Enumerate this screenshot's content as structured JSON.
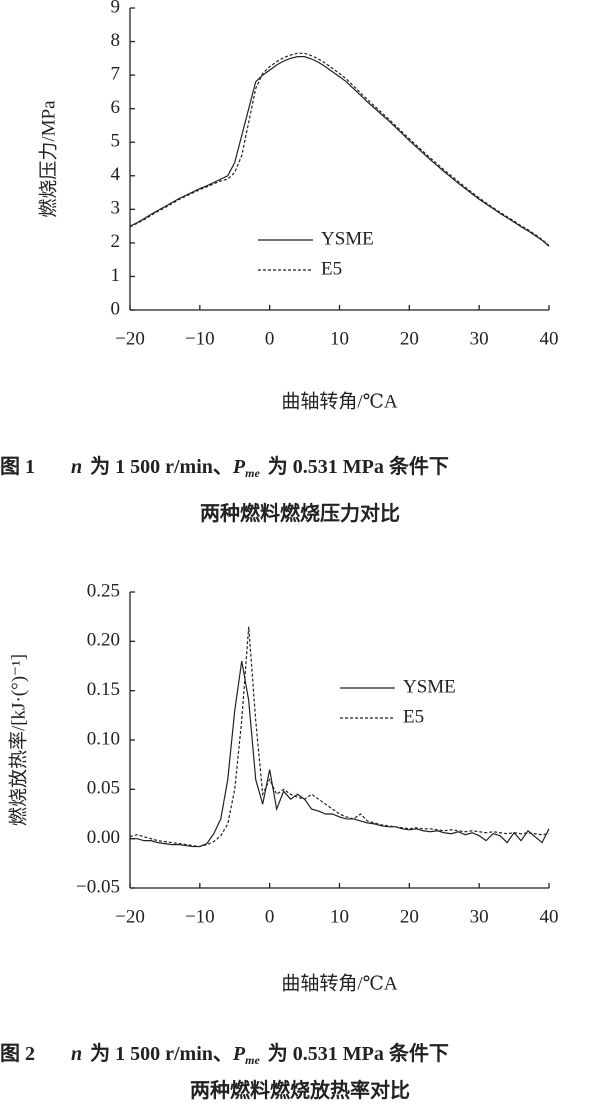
{
  "chart_data": [
    {
      "type": "line",
      "x_label": "曲轴转角/℃A",
      "y_label": "燃烧压力/MPa",
      "xlim": [
        -20,
        40
      ],
      "xticks": [
        {
          "value": -20,
          "label": "−20"
        },
        {
          "value": -10,
          "label": "−10"
        },
        0,
        10,
        20,
        30,
        40
      ],
      "ylim": [
        0,
        9
      ],
      "yticks": [
        0,
        1,
        2,
        3,
        4,
        5,
        6,
        7,
        8,
        9
      ],
      "grid": false,
      "x": [
        -20,
        -19,
        -18,
        -17,
        -16,
        -15,
        -14,
        -13,
        -12,
        -11,
        -10,
        -9,
        -8,
        -7,
        -6,
        -5,
        -4,
        -3,
        -2,
        -1,
        0,
        1,
        2,
        3,
        4,
        5,
        6,
        7,
        8,
        9,
        10,
        11,
        12,
        13,
        14,
        15,
        16,
        17,
        18,
        19,
        20,
        21,
        22,
        23,
        24,
        25,
        26,
        27,
        28,
        29,
        30,
        31,
        32,
        33,
        34,
        35,
        36,
        37,
        38,
        39,
        40
      ],
      "series": [
        {
          "name": "YSME",
          "color": "#222222",
          "dash": "solid",
          "values": [
            2.5,
            2.6,
            2.72,
            2.85,
            2.97,
            3.08,
            3.2,
            3.32,
            3.42,
            3.52,
            3.62,
            3.7,
            3.8,
            3.9,
            4.0,
            4.4,
            5.2,
            6.0,
            6.8,
            7.0,
            7.15,
            7.3,
            7.42,
            7.5,
            7.55,
            7.55,
            7.48,
            7.38,
            7.25,
            7.1,
            6.95,
            6.8,
            6.6,
            6.4,
            6.2,
            6.02,
            5.83,
            5.65,
            5.45,
            5.25,
            5.05,
            4.86,
            4.67,
            4.48,
            4.3,
            4.12,
            3.95,
            3.78,
            3.62,
            3.46,
            3.3,
            3.16,
            3.02,
            2.88,
            2.75,
            2.62,
            2.48,
            2.36,
            2.22,
            2.08,
            1.9
          ]
        },
        {
          "name": "E5",
          "color": "#222222",
          "dash": "dashed",
          "values": [
            2.48,
            2.58,
            2.69,
            2.82,
            2.94,
            3.05,
            3.17,
            3.29,
            3.39,
            3.49,
            3.59,
            3.67,
            3.76,
            3.85,
            3.9,
            4.1,
            4.6,
            5.6,
            6.6,
            7.05,
            7.25,
            7.4,
            7.52,
            7.6,
            7.65,
            7.65,
            7.58,
            7.48,
            7.35,
            7.2,
            7.05,
            6.88,
            6.68,
            6.47,
            6.27,
            6.08,
            5.89,
            5.7,
            5.5,
            5.3,
            5.1,
            4.91,
            4.72,
            4.53,
            4.35,
            4.17,
            4.0,
            3.83,
            3.66,
            3.5,
            3.34,
            3.19,
            3.05,
            2.91,
            2.78,
            2.65,
            2.51,
            2.39,
            2.25,
            2.1,
            1.92
          ]
        }
      ],
      "legend": "center",
      "caption": {
        "number": "图 1",
        "var_n": "n",
        "text1": "为 1 500 r/min、",
        "var_p": "P",
        "sub": "me",
        "text2": "为 0.531 MPa 条件下",
        "line2": "两种燃料燃烧压力对比"
      }
    },
    {
      "type": "line",
      "x_label": "曲轴转角/℃A",
      "y_label": "燃烧放热率/[kJ·(°)⁻¹]",
      "xlim": [
        -20,
        40
      ],
      "xticks": [
        {
          "value": -20,
          "label": "−20"
        },
        {
          "value": -10,
          "label": "−10"
        },
        0,
        10,
        20,
        30,
        40
      ],
      "ylim": [
        -0.05,
        0.25
      ],
      "yticks": [
        {
          "value": -0.05,
          "label": "−0.05"
        },
        {
          "value": 0,
          "label": "0.00"
        },
        0.05,
        {
          "value": 0.1,
          "label": "0.10"
        },
        0.15,
        {
          "value": 0.2,
          "label": "0.20"
        },
        0.25
      ],
      "grid": false,
      "x": [
        -20,
        -19,
        -18,
        -17,
        -16,
        -15,
        -14,
        -13,
        -12,
        -11,
        -10,
        -9,
        -8,
        -7,
        -6,
        -5,
        -4,
        -3,
        -2,
        -1,
        0,
        1,
        2,
        3,
        4,
        5,
        6,
        7,
        8,
        9,
        10,
        11,
        12,
        13,
        14,
        15,
        16,
        17,
        18,
        19,
        20,
        21,
        22,
        23,
        24,
        25,
        26,
        27,
        28,
        29,
        30,
        31,
        32,
        33,
        34,
        35,
        36,
        37,
        38,
        39,
        40
      ],
      "series": [
        {
          "name": "YSME",
          "color": "#222222",
          "dash": "solid",
          "values": [
            0.0,
            0.0,
            -0.002,
            -0.002,
            -0.004,
            -0.005,
            -0.006,
            -0.006,
            -0.007,
            -0.008,
            -0.008,
            -0.005,
            0.005,
            0.02,
            0.06,
            0.13,
            0.18,
            0.14,
            0.06,
            0.035,
            0.07,
            0.03,
            0.048,
            0.04,
            0.045,
            0.04,
            0.03,
            0.028,
            0.025,
            0.025,
            0.022,
            0.02,
            0.02,
            0.018,
            0.016,
            0.015,
            0.013,
            0.012,
            0.012,
            0.01,
            0.009,
            0.01,
            0.008,
            0.007,
            0.008,
            0.006,
            0.005,
            0.007,
            0.004,
            0.006,
            0.003,
            -0.002,
            0.005,
            0.003,
            -0.004,
            0.006,
            -0.002,
            0.008,
            0.002,
            -0.004,
            0.01
          ]
        },
        {
          "name": "E5",
          "color": "#222222",
          "dash": "dashed",
          "values": [
            0.002,
            0.004,
            0.002,
            0.0,
            -0.002,
            -0.003,
            -0.004,
            -0.005,
            -0.006,
            -0.007,
            -0.008,
            -0.006,
            -0.003,
            0.003,
            0.015,
            0.05,
            0.12,
            0.215,
            0.12,
            0.045,
            0.06,
            0.045,
            0.05,
            0.045,
            0.042,
            0.04,
            0.045,
            0.04,
            0.035,
            0.03,
            0.025,
            0.022,
            0.02,
            0.025,
            0.018,
            0.016,
            0.014,
            0.013,
            0.012,
            0.011,
            0.01,
            0.011,
            0.01,
            0.01,
            0.009,
            0.008,
            0.009,
            0.008,
            0.007,
            0.008,
            0.007,
            0.006,
            0.007,
            0.006,
            0.005,
            0.006,
            0.005,
            0.006,
            0.005,
            0.004,
            0.005
          ]
        }
      ],
      "legend": "upper right",
      "caption": {
        "number": "图 2",
        "var_n": "n",
        "text1": "为 1 500 r/min、",
        "var_p": "P",
        "sub": "me",
        "text2": "为 0.531 MPa 条件下",
        "line2": "两种燃料燃烧放热率对比"
      }
    }
  ]
}
